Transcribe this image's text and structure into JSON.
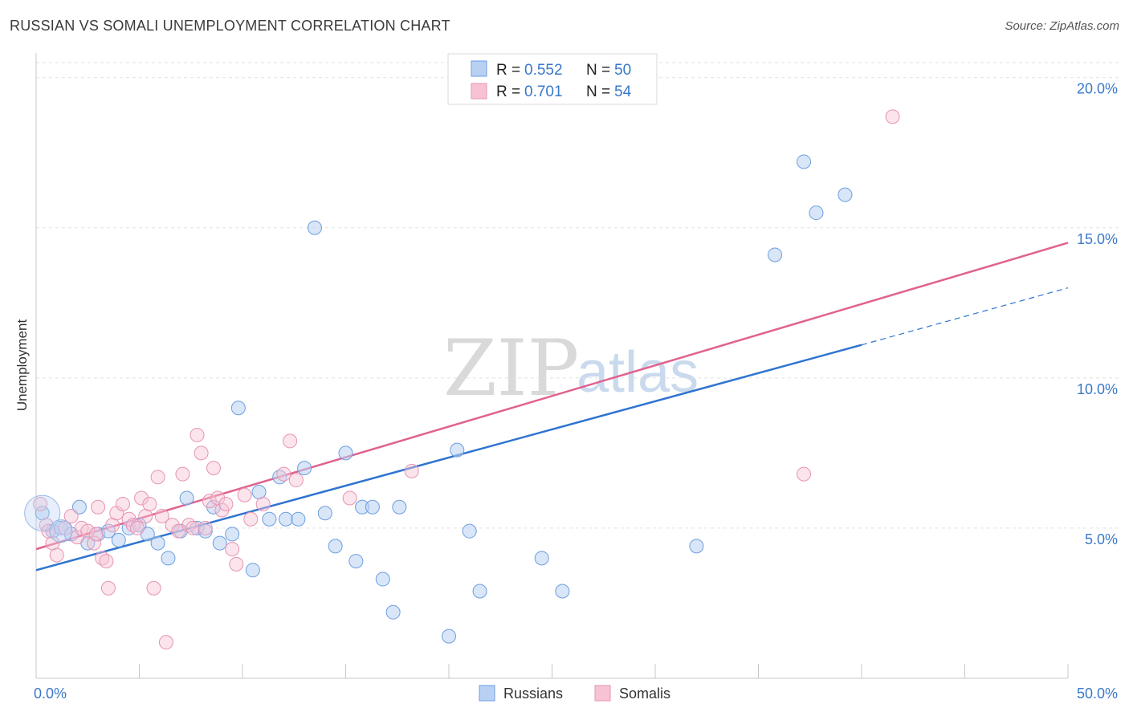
{
  "title": "RUSSIAN VS SOMALI UNEMPLOYMENT CORRELATION CHART",
  "source": "Source: ZipAtlas.com",
  "watermark": {
    "zip": "ZIP",
    "atlas": "atlas"
  },
  "colors": {
    "russians": "#4a86d8",
    "somalis": "#e8749c",
    "russians_fill": "#b8d1f3",
    "somalis_fill": "#f7c3d4",
    "accent": "#3a78c9"
  },
  "legend": {
    "rows": [
      {
        "r_label": "R = ",
        "r_value": "0.552",
        "n_label": "N = ",
        "n_value": "50"
      },
      {
        "r_label": "R = ",
        "r_value": "0.701",
        "n_label": "N = ",
        "n_value": "54"
      }
    ]
  },
  "chart_data": {
    "type": "scatter",
    "title": "RUSSIAN VS SOMALI UNEMPLOYMENT CORRELATION CHART",
    "xlabel": "",
    "ylabel": "Unemployment",
    "xlim": [
      0,
      50
    ],
    "ylim": [
      0,
      20.5
    ],
    "x_tick_labels": [
      "0.0%",
      "50.0%"
    ],
    "y_ticks": [
      5,
      10,
      15,
      20
    ],
    "y_tick_labels": [
      "5.0%",
      "10.0%",
      "15.0%",
      "20.0%"
    ],
    "grid": true,
    "legend_position": "top-center",
    "series": [
      {
        "name": "Russians",
        "color": "#4a86d8",
        "r": 0.552,
        "n": 50,
        "trend": {
          "x0": 0,
          "y0": 3.6,
          "x1": 40,
          "y1": 11.1,
          "dashed_to": {
            "x": 50,
            "y": 13.0
          }
        },
        "points": [
          [
            0.3,
            5.5
          ],
          [
            0.8,
            4.9
          ],
          [
            1.2,
            5.0
          ],
          [
            1.7,
            4.8
          ],
          [
            2.1,
            5.7
          ],
          [
            2.5,
            4.5
          ],
          [
            3.0,
            4.8
          ],
          [
            3.5,
            4.9
          ],
          [
            4.0,
            4.6
          ],
          [
            4.5,
            5.0
          ],
          [
            5.0,
            5.1
          ],
          [
            5.4,
            4.8
          ],
          [
            5.9,
            4.5
          ],
          [
            6.4,
            4.0
          ],
          [
            7.0,
            4.9
          ],
          [
            7.3,
            6.0
          ],
          [
            7.8,
            5.0
          ],
          [
            8.2,
            4.9
          ],
          [
            8.6,
            5.7
          ],
          [
            8.9,
            4.5
          ],
          [
            9.5,
            4.8
          ],
          [
            9.8,
            9.0
          ],
          [
            10.5,
            3.6
          ],
          [
            10.8,
            6.2
          ],
          [
            11.3,
            5.3
          ],
          [
            11.8,
            6.7
          ],
          [
            12.1,
            5.3
          ],
          [
            12.7,
            5.3
          ],
          [
            13.0,
            7.0
          ],
          [
            13.5,
            15.0
          ],
          [
            14.0,
            5.5
          ],
          [
            14.5,
            4.4
          ],
          [
            15.0,
            7.5
          ],
          [
            15.5,
            3.9
          ],
          [
            15.8,
            5.7
          ],
          [
            16.3,
            5.7
          ],
          [
            16.8,
            3.3
          ],
          [
            17.3,
            2.2
          ],
          [
            17.6,
            5.7
          ],
          [
            20.0,
            1.4
          ],
          [
            20.4,
            7.6
          ],
          [
            21.0,
            4.9
          ],
          [
            21.5,
            2.9
          ],
          [
            24.5,
            4.0
          ],
          [
            25.5,
            2.9
          ],
          [
            32.0,
            4.4
          ],
          [
            35.8,
            14.1
          ],
          [
            37.2,
            17.2
          ],
          [
            37.8,
            15.5
          ],
          [
            39.2,
            16.1
          ]
        ]
      },
      {
        "name": "Somalis",
        "color": "#e8749c",
        "r": 0.701,
        "n": 54,
        "trend": {
          "x0": 0,
          "y0": 4.3,
          "x1": 50,
          "y1": 14.5
        },
        "points": [
          [
            0.2,
            5.8
          ],
          [
            0.5,
            5.1
          ],
          [
            0.8,
            4.5
          ],
          [
            1.0,
            4.1
          ],
          [
            1.4,
            5.0
          ],
          [
            1.7,
            5.4
          ],
          [
            2.0,
            4.7
          ],
          [
            2.2,
            5.0
          ],
          [
            2.5,
            4.9
          ],
          [
            2.8,
            4.5
          ],
          [
            3.0,
            5.7
          ],
          [
            3.2,
            4.0
          ],
          [
            3.4,
            3.9
          ],
          [
            3.7,
            5.1
          ],
          [
            3.9,
            5.5
          ],
          [
            3.5,
            3.0
          ],
          [
            4.2,
            5.8
          ],
          [
            4.5,
            5.3
          ],
          [
            4.7,
            5.1
          ],
          [
            4.9,
            5.0
          ],
          [
            5.1,
            6.0
          ],
          [
            5.3,
            5.4
          ],
          [
            5.5,
            5.8
          ],
          [
            5.7,
            3.0
          ],
          [
            5.9,
            6.7
          ],
          [
            6.1,
            5.4
          ],
          [
            6.3,
            1.2
          ],
          [
            6.6,
            5.1
          ],
          [
            6.9,
            4.9
          ],
          [
            7.1,
            6.8
          ],
          [
            7.4,
            5.1
          ],
          [
            7.6,
            5.0
          ],
          [
            7.8,
            8.1
          ],
          [
            8.0,
            7.5
          ],
          [
            8.2,
            5.0
          ],
          [
            8.4,
            5.9
          ],
          [
            8.6,
            7.0
          ],
          [
            8.8,
            6.0
          ],
          [
            9.0,
            5.6
          ],
          [
            9.2,
            5.8
          ],
          [
            9.5,
            4.3
          ],
          [
            9.7,
            3.8
          ],
          [
            10.1,
            6.1
          ],
          [
            10.4,
            5.3
          ],
          [
            11.0,
            5.8
          ],
          [
            12.0,
            6.8
          ],
          [
            12.3,
            7.9
          ],
          [
            12.6,
            6.6
          ],
          [
            15.2,
            6.0
          ],
          [
            18.2,
            6.9
          ],
          [
            37.2,
            6.8
          ],
          [
            41.5,
            18.7
          ],
          [
            0.6,
            4.9
          ],
          [
            2.9,
            4.8
          ]
        ]
      }
    ]
  },
  "bottom_legend": [
    "Russians",
    "Somalis"
  ]
}
